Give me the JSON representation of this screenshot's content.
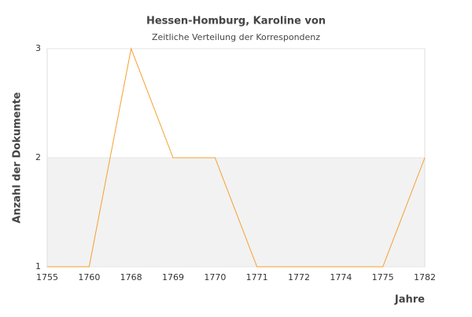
{
  "chart_data": {
    "type": "line",
    "title": "Hessen-Homburg, Karoline von",
    "subtitle": "Zeitliche Verteilung der Korrespondenz",
    "x_label": "Jahre",
    "y_label": "Anzahl der Dokumente",
    "categories": [
      "1755",
      "1760",
      "1768",
      "1769",
      "1770",
      "1771",
      "1772",
      "1774",
      "1775",
      "1782"
    ],
    "values": [
      1,
      1,
      3,
      2,
      2,
      1,
      1,
      1,
      1,
      2
    ],
    "color": "#f5a030",
    "ylim": [
      1,
      3
    ],
    "yticks": [
      1,
      2,
      3
    ],
    "alternate_bands": true
  }
}
